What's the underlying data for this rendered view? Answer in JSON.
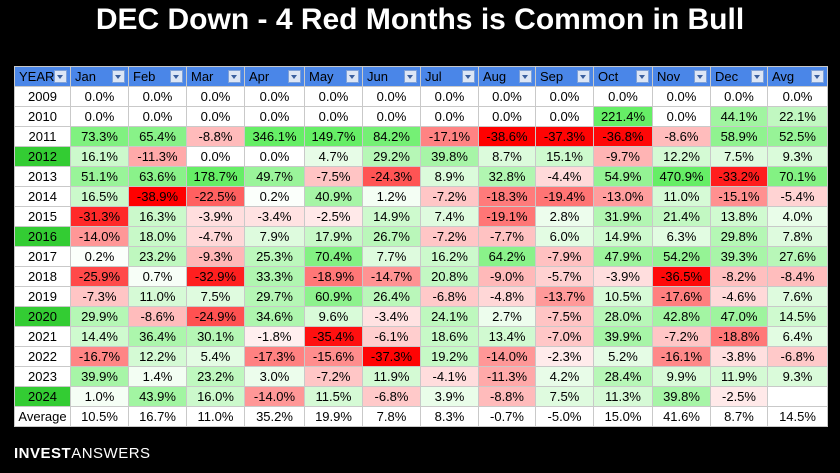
{
  "title": "DEC Down - 4 Red Months is Common in Bull",
  "brand": {
    "bold": "INVEST",
    "light": "ANSWERS"
  },
  "colors": {
    "header_bg": "#4a86e8",
    "highlight_year": "#33cc33",
    "strong_red": "#ff0000",
    "strong_green": "#66ee66"
  },
  "chart_data": {
    "type": "table",
    "columns": [
      "YEAR",
      "Jan",
      "Feb",
      "Mar",
      "Apr",
      "May",
      "Jun",
      "Jul",
      "Aug",
      "Sep",
      "Oct",
      "Nov",
      "Dec",
      "Avg"
    ],
    "highlighted_years": [
      "2012",
      "2016",
      "2020",
      "2024"
    ],
    "rows": [
      {
        "year": "2009",
        "values": [
          "0.0%",
          "0.0%",
          "0.0%",
          "0.0%",
          "0.0%",
          "0.0%",
          "0.0%",
          "0.0%",
          "0.0%",
          "0.0%",
          "0.0%",
          "0.0%",
          "0.0%"
        ]
      },
      {
        "year": "2010",
        "values": [
          "0.0%",
          "0.0%",
          "0.0%",
          "0.0%",
          "0.0%",
          "0.0%",
          "0.0%",
          "0.0%",
          "0.0%",
          "221.4%",
          "0.0%",
          "44.1%",
          "22.1%"
        ]
      },
      {
        "year": "2011",
        "values": [
          "73.3%",
          "65.4%",
          "-8.8%",
          "346.1%",
          "149.7%",
          "84.2%",
          "-17.1%",
          "-38.6%",
          "-37.3%",
          "-36.8%",
          "-8.6%",
          "58.9%",
          "52.5%"
        ]
      },
      {
        "year": "2012",
        "values": [
          "16.1%",
          "-11.3%",
          "0.0%",
          "0.0%",
          "4.7%",
          "29.2%",
          "39.8%",
          "8.7%",
          "15.1%",
          "-9.7%",
          "12.2%",
          "7.5%",
          "9.3%"
        ]
      },
      {
        "year": "2013",
        "values": [
          "51.1%",
          "63.6%",
          "178.7%",
          "49.7%",
          "-7.5%",
          "-24.3%",
          "8.9%",
          "32.8%",
          "-4.4%",
          "54.9%",
          "470.9%",
          "-33.2%",
          "70.1%"
        ]
      },
      {
        "year": "2014",
        "values": [
          "16.5%",
          "-38.9%",
          "-22.5%",
          "0.2%",
          "40.9%",
          "1.2%",
          "-7.2%",
          "-18.3%",
          "-19.4%",
          "-13.0%",
          "11.0%",
          "-15.1%",
          "-5.4%"
        ]
      },
      {
        "year": "2015",
        "values": [
          "-31.3%",
          "16.3%",
          "-3.9%",
          "-3.4%",
          "-2.5%",
          "14.9%",
          "7.4%",
          "-19.1%",
          "2.8%",
          "31.9%",
          "21.4%",
          "13.8%",
          "4.0%"
        ]
      },
      {
        "year": "2016",
        "values": [
          "-14.0%",
          "18.0%",
          "-4.7%",
          "7.9%",
          "17.9%",
          "26.7%",
          "-7.2%",
          "-7.7%",
          "6.0%",
          "14.9%",
          "6.3%",
          "29.8%",
          "7.8%"
        ]
      },
      {
        "year": "2017",
        "values": [
          "0.2%",
          "23.2%",
          "-9.3%",
          "25.3%",
          "70.4%",
          "7.7%",
          "16.2%",
          "64.2%",
          "-7.9%",
          "47.9%",
          "54.2%",
          "39.3%",
          "27.6%"
        ]
      },
      {
        "year": "2018",
        "values": [
          "-25.9%",
          "0.7%",
          "-32.9%",
          "33.3%",
          "-18.9%",
          "-14.7%",
          "20.8%",
          "-9.0%",
          "-5.7%",
          "-3.9%",
          "-36.5%",
          "-8.2%",
          "-8.4%"
        ]
      },
      {
        "year": "2019",
        "values": [
          "-7.3%",
          "11.0%",
          "7.5%",
          "29.7%",
          "60.9%",
          "26.4%",
          "-6.8%",
          "-4.8%",
          "-13.7%",
          "10.5%",
          "-17.6%",
          "-4.6%",
          "7.6%"
        ]
      },
      {
        "year": "2020",
        "values": [
          "29.9%",
          "-8.6%",
          "-24.9%",
          "34.6%",
          "9.6%",
          "-3.4%",
          "24.1%",
          "2.7%",
          "-7.5%",
          "28.0%",
          "42.8%",
          "47.0%",
          "14.5%"
        ]
      },
      {
        "year": "2021",
        "values": [
          "14.4%",
          "36.4%",
          "30.1%",
          "-1.8%",
          "-35.4%",
          "-6.1%",
          "18.6%",
          "13.4%",
          "-7.0%",
          "39.9%",
          "-7.2%",
          "-18.8%",
          "6.4%"
        ]
      },
      {
        "year": "2022",
        "values": [
          "-16.7%",
          "12.2%",
          "5.4%",
          "-17.3%",
          "-15.6%",
          "-37.3%",
          "19.2%",
          "-14.0%",
          "-2.3%",
          "5.2%",
          "-16.1%",
          "-3.8%",
          "-6.8%"
        ]
      },
      {
        "year": "2023",
        "values": [
          "39.9%",
          "1.4%",
          "23.2%",
          "3.0%",
          "-7.2%",
          "11.9%",
          "-4.1%",
          "-11.3%",
          "4.2%",
          "28.4%",
          "9.9%",
          "11.9%",
          "9.3%"
        ]
      },
      {
        "year": "2024",
        "values": [
          "1.0%",
          "43.9%",
          "16.0%",
          "-14.0%",
          "11.5%",
          "-6.8%",
          "3.9%",
          "-8.8%",
          "7.5%",
          "11.3%",
          "39.8%",
          "-2.5%",
          ""
        ]
      }
    ],
    "average_row": {
      "label": "Average",
      "values": [
        "10.5%",
        "16.7%",
        "11.0%",
        "35.2%",
        "19.9%",
        "7.8%",
        "8.3%",
        "-0.7%",
        "-5.0%",
        "15.0%",
        "41.6%",
        "8.7%",
        "14.5%"
      ]
    }
  }
}
